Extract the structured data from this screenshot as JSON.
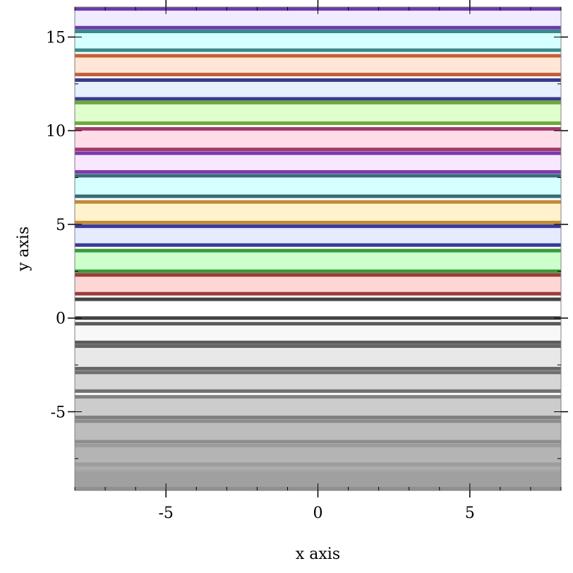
{
  "chart_data": {
    "type": "area",
    "title": "",
    "xlabel": "x axis",
    "ylabel": "y axis",
    "xlim": [
      -8,
      8
    ],
    "ylim": [
      -9.2,
      16.6
    ],
    "x_major_ticks": [
      -5,
      0,
      5
    ],
    "y_major_ticks": [
      -5,
      0,
      5,
      10,
      15
    ],
    "x_tick_labels": [
      "-5",
      "0",
      "5"
    ],
    "y_tick_labels": [
      "-5",
      "0",
      "5",
      "10",
      "15"
    ],
    "grid": false,
    "legend": "none",
    "bands": [
      {
        "lower": -9.1,
        "upper": -8.1,
        "fill": "#a0a0a0",
        "line": "#909090"
      },
      {
        "lower": -8.1,
        "upper": -7.9,
        "fill": "#e0e0e0",
        "line": "#a8a8a8"
      },
      {
        "lower": -7.8,
        "upper": -6.8,
        "fill": "#b4b4b4",
        "line": "#9c9c9c"
      },
      {
        "lower": -6.6,
        "upper": -5.5,
        "fill": "#bdbdbd",
        "line": "#8c8c8c"
      },
      {
        "lower": -5.3,
        "upper": -4.2,
        "fill": "#cccccc",
        "line": "#808080"
      },
      {
        "lower": -3.9,
        "upper": -2.9,
        "fill": "#d6d6d6",
        "line": "#707070"
      },
      {
        "lower": -2.7,
        "upper": -1.5,
        "fill": "#e8e8e8",
        "line": "#666666"
      },
      {
        "lower": -1.3,
        "upper": -0.3,
        "fill": "#f8f8f8",
        "line": "#5a5a5a"
      },
      {
        "lower": 0.0,
        "upper": 1.0,
        "fill": "#ffffff",
        "line": "#444444"
      },
      {
        "lower": 1.3,
        "upper": 2.3,
        "fill": "#ffd6d6",
        "line": "#a03a3a"
      },
      {
        "lower": 2.5,
        "upper": 3.6,
        "fill": "#ccffcc",
        "line": "#3a9a3a"
      },
      {
        "lower": 3.9,
        "upper": 4.9,
        "fill": "#e6ecff",
        "line": "#3a3a9a"
      },
      {
        "lower": 5.1,
        "upper": 6.2,
        "fill": "#fff2cc",
        "line": "#c08a3a"
      },
      {
        "lower": 6.5,
        "upper": 7.6,
        "fill": "#d6ffff",
        "line": "#3a6a7a"
      },
      {
        "lower": 7.8,
        "upper": 8.8,
        "fill": "#f8e8ff",
        "line": "#7a3aaa"
      },
      {
        "lower": 9.0,
        "upper": 10.1,
        "fill": "#ffdde8",
        "line": "#a03a6a"
      },
      {
        "lower": 10.4,
        "upper": 11.5,
        "fill": "#dfffcc",
        "line": "#6aaa3a"
      },
      {
        "lower": 11.7,
        "upper": 12.7,
        "fill": "#e6f0ff",
        "line": "#3a3a8a"
      },
      {
        "lower": 13.0,
        "upper": 14.0,
        "fill": "#ffe6d6",
        "line": "#c0603a"
      },
      {
        "lower": 14.3,
        "upper": 15.3,
        "fill": "#d6ffff",
        "line": "#3a8a8a"
      },
      {
        "lower": 15.5,
        "upper": 16.5,
        "fill": "#f0ebff",
        "line": "#6a3aaa"
      }
    ]
  }
}
